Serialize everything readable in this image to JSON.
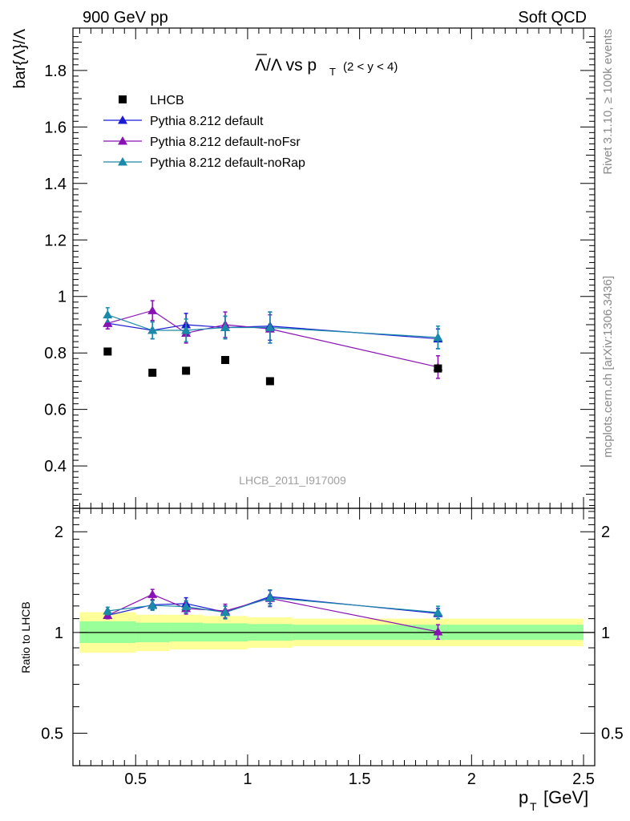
{
  "header": {
    "left": "900 GeV pp",
    "right": "Soft QCD"
  },
  "side_labels": {
    "rivet": "Rivet 3.1.10, ≥ 100k events",
    "mcplots": "mcplots.cern.ch [arXiv:1306.3436]"
  },
  "watermark": "LHCB_2011_I917009",
  "chart_data": [
    {
      "type": "scatter",
      "panel": "main",
      "title_main": "Λ/Λ vs p",
      "title_sub": "T",
      "title_range": "(2 < y < 4)",
      "ylabel": "bar{Λ}/Λ",
      "xlabel": "",
      "xlim": [
        0.22,
        2.55
      ],
      "ylim": [
        0.25,
        1.95
      ],
      "xticks": [
        0.5,
        1,
        1.5,
        2,
        2.5
      ],
      "yticks": [
        0.4,
        0.6,
        0.8,
        1,
        1.2,
        1.4,
        1.6,
        1.8
      ],
      "ytick_labels": [
        "0.4",
        "0.6",
        "0.8",
        "1",
        "1.2",
        "1.4",
        "1.6",
        "1.8"
      ],
      "legend_position": "top-left",
      "series": [
        {
          "name": "LHCB",
          "marker": "square",
          "color": "#000000",
          "x": [
            0.375,
            0.575,
            0.725,
            0.9,
            1.1,
            1.85
          ],
          "y": [
            0.805,
            0.73,
            0.737,
            0.775,
            0.7,
            0.745
          ]
        },
        {
          "name": "Pythia 8.212 default",
          "marker": "triangle",
          "color": "#1a1ad6",
          "x": [
            0.375,
            0.575,
            0.725,
            0.9,
            1.1,
            1.85
          ],
          "y": [
            0.905,
            0.88,
            0.9,
            0.89,
            0.895,
            0.85
          ],
          "err": [
            0.02,
            0.03,
            0.04,
            0.04,
            0.05,
            0.035
          ]
        },
        {
          "name": "Pythia 8.212 default-noFsr",
          "marker": "triangle",
          "color": "#8a12b4",
          "x": [
            0.375,
            0.575,
            0.725,
            0.9,
            1.1,
            1.85
          ],
          "y": [
            0.905,
            0.95,
            0.87,
            0.9,
            0.885,
            0.75
          ],
          "err": [
            0.02,
            0.035,
            0.035,
            0.045,
            0.05,
            0.04
          ]
        },
        {
          "name": "Pythia 8.212 default-noRap",
          "marker": "triangle",
          "color": "#1b8aa8",
          "x": [
            0.375,
            0.575,
            0.725,
            0.9,
            1.1,
            1.85
          ],
          "y": [
            0.935,
            0.88,
            0.88,
            0.89,
            0.89,
            0.855
          ],
          "err": [
            0.025,
            0.03,
            0.04,
            0.04,
            0.055,
            0.04
          ]
        }
      ]
    },
    {
      "type": "line",
      "panel": "ratio",
      "ylabel": "Ratio to LHCB",
      "xlabel_main": "p",
      "xlabel_sub": "T",
      "xlabel_unit": "[GeV]",
      "xlim": [
        0.22,
        2.55
      ],
      "ylim": [
        0.4,
        2.35
      ],
      "yscale": "log",
      "xticks": [
        0.5,
        1,
        1.5,
        2,
        2.5
      ],
      "xtick_labels": [
        "0.5",
        "1",
        "1.5",
        "2",
        "2.5"
      ],
      "yticks": [
        0.5,
        1,
        2
      ],
      "ytick_labels": [
        "0.5",
        "1",
        "2"
      ],
      "bands": {
        "x_edges": [
          0.25,
          0.5,
          0.65,
          0.8,
          1.0,
          1.2,
          2.5
        ],
        "yellow_low": [
          0.87,
          0.88,
          0.89,
          0.89,
          0.9,
          0.91
        ],
        "yellow_high": [
          1.15,
          1.13,
          1.13,
          1.12,
          1.11,
          1.1
        ],
        "green_low": [
          0.93,
          0.935,
          0.94,
          0.94,
          0.945,
          0.95
        ],
        "green_high": [
          1.08,
          1.07,
          1.07,
          1.065,
          1.06,
          1.055
        ]
      },
      "series": [
        {
          "name": "Pythia 8.212 default",
          "color": "#1a1ad6",
          "x": [
            0.375,
            0.575,
            0.725,
            0.9,
            1.1,
            1.85
          ],
          "y": [
            1.125,
            1.21,
            1.22,
            1.15,
            1.28,
            1.14
          ],
          "err": [
            0.025,
            0.04,
            0.05,
            0.05,
            0.06,
            0.04
          ]
        },
        {
          "name": "Pythia 8.212 default-noFsr",
          "color": "#8a12b4",
          "x": [
            0.375,
            0.575,
            0.725,
            0.9,
            1.1,
            1.85
          ],
          "y": [
            1.125,
            1.3,
            1.18,
            1.16,
            1.265,
            1.005
          ],
          "err": [
            0.025,
            0.045,
            0.045,
            0.055,
            0.07,
            0.05
          ]
        },
        {
          "name": "Pythia 8.212 default-noRap",
          "color": "#1b8aa8",
          "x": [
            0.375,
            0.575,
            0.725,
            0.9,
            1.1,
            1.85
          ],
          "y": [
            1.16,
            1.205,
            1.195,
            1.148,
            1.27,
            1.148
          ],
          "err": [
            0.03,
            0.04,
            0.05,
            0.05,
            0.07,
            0.05
          ]
        }
      ]
    }
  ]
}
